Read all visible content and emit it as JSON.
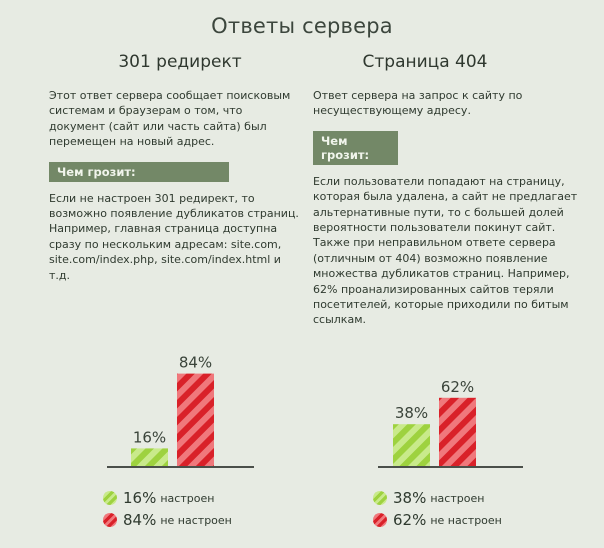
{
  "title": "Ответы сервера",
  "left": {
    "heading": "301 редирект",
    "intro": "Этот ответ сервера сообщает поисковым системам и браузерам о том, что документ (сайт или часть сайта) был перемещен на новый адрес.",
    "threat_label": "Чем грозит:",
    "threat_text": "Если не настроен 301 редирект, то возможно появление дубликатов страниц. Например, главная страница доступна сразу по нескольким адресам: site.com, site.com/index.php, site.com/index.html и т.д."
  },
  "right": {
    "heading": "Страница 404",
    "intro": "Ответ сервера на запрос к сайту по несуществующему адресу.",
    "threat_label": "Чем грозит:",
    "threat_text": "Если пользователи попадают на страницу, которая была удалена, а сайт не предлагает альтернативные пути, то с большей долей вероятности пользователи покинут сайт. Также при неправильном ответе сервера (отличным от 404) возможно появление множества дубликатов страниц. Например, 62% проанализированных сайтов теряли посетителей, которые приходили по битым ссылкам."
  },
  "colors": {
    "green": "#9ed23f",
    "green_light": "#c9ea8b",
    "red": "#d92129",
    "red_light": "#f0787c",
    "threat_bg": "#738867"
  },
  "chart_data": [
    {
      "type": "bar",
      "categories": [
        "настроен",
        "не настроен"
      ],
      "values": [
        16,
        84
      ],
      "labels": [
        "16%",
        "84%"
      ],
      "legend": [
        {
          "pct": "16%",
          "label": "настроен"
        },
        {
          "pct": "84%",
          "label": "не настроен"
        }
      ]
    },
    {
      "type": "bar",
      "categories": [
        "настроен",
        "не настроен"
      ],
      "values": [
        38,
        62
      ],
      "labels": [
        "38%",
        "62%"
      ],
      "legend": [
        {
          "pct": "38%",
          "label": "настроен"
        },
        {
          "pct": "62%",
          "label": "не настроен"
        }
      ]
    }
  ]
}
